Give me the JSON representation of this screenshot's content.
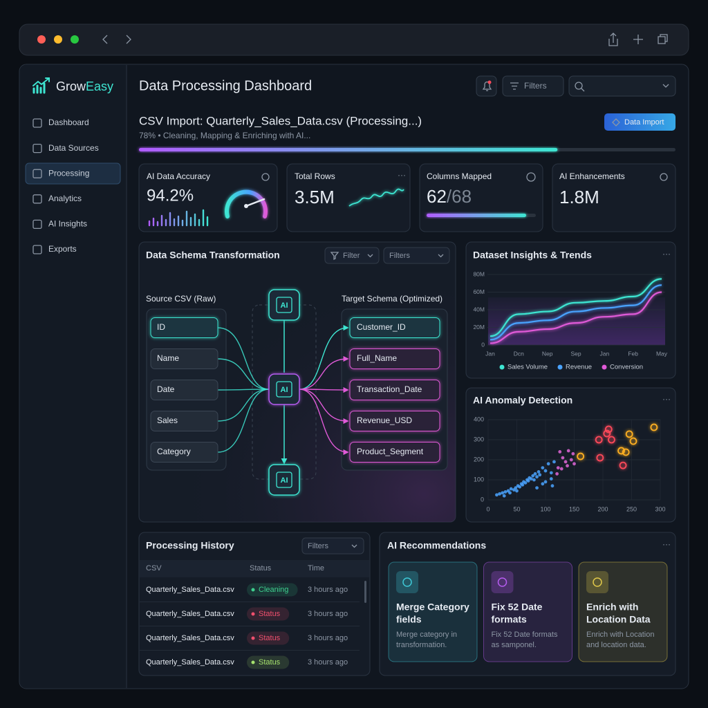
{
  "brand": [
    "Grow",
    "Easy"
  ],
  "nav": [
    "Dashboard",
    "Data Sources",
    "Processing",
    "Analytics",
    "AI Insights",
    "Exports"
  ],
  "header": {
    "title": "Data Processing Dashboard",
    "filters": "Filters"
  },
  "import": {
    "title": "CSV Import: Quarterly_Sales_Data.csv (Processing...)",
    "status": "78% • Cleaning, Mapping & Enriching with AI...",
    "progress": 78,
    "button": "Data Import"
  },
  "kpis": [
    {
      "label": "AI Data Accuracy",
      "value": "94.2%"
    },
    {
      "label": "Total Rows",
      "value": "3.5M"
    },
    {
      "label": "Columns Mapped",
      "value": "62",
      "total": "/68"
    },
    {
      "label": "AI Enhancements",
      "value": "1.8M"
    }
  ],
  "schema": {
    "title": "Data Schema Transformation",
    "filter": "Filter",
    "filters": "Filters",
    "source_title": "Source CSV (Raw)",
    "target_title": "Target Schema (Optimized)",
    "ai": "AI",
    "sources": [
      "ID",
      "Name",
      "Date",
      "Sales",
      "Category"
    ],
    "targets": [
      "Customer_ID",
      "Full_Name",
      "Transaction_Date",
      "Revenue_USD",
      "Product_Segment"
    ]
  },
  "chart_data": [
    {
      "type": "line",
      "title": "Dataset Insights & Trends",
      "categories": [
        "Jan",
        "Dcn",
        "Nep",
        "Sep",
        "Jan",
        "Feb",
        "May"
      ],
      "ylim": [
        0,
        80000000
      ],
      "yticks": [
        0,
        {
          "value": 20000000,
          "label": "20M"
        },
        {
          "value": 40000000,
          "label": "40M"
        },
        {
          "value": 60000000,
          "label": "60M"
        },
        {
          "value": 80000000,
          "label": "80M"
        }
      ],
      "grid": true,
      "series": [
        {
          "name": "Sales Volume",
          "color": "#3ee6d2",
          "values": [
            10000000,
            35000000,
            38000000,
            48000000,
            50000000,
            55000000,
            75000000
          ]
        },
        {
          "name": "Revenue",
          "color": "#4aa3ff",
          "values": [
            6000000,
            25000000,
            28000000,
            38000000,
            42000000,
            45000000,
            68000000
          ]
        },
        {
          "name": "Conversion",
          "color": "#e05ad8",
          "values": [
            2000000,
            15000000,
            18000000,
            25000000,
            32000000,
            35000000,
            60000000
          ]
        }
      ]
    },
    {
      "type": "scatter",
      "title": "AI Anomaly Detection",
      "xlim": [
        0,
        300
      ],
      "ylim": [
        0,
        400
      ],
      "xticks": [
        0,
        50,
        100,
        150,
        200,
        250,
        300
      ],
      "yticks": [
        0,
        100,
        200,
        300,
        400
      ],
      "grid": true,
      "series": [
        {
          "color": "#4aa3ff",
          "marker": "dot",
          "x": [
            15,
            20,
            25,
            28,
            30,
            35,
            38,
            40,
            45,
            48,
            50,
            52,
            55,
            58,
            60,
            62,
            65,
            68,
            70,
            72,
            75,
            78,
            80,
            82,
            85,
            88,
            90,
            95,
            100,
            105,
            110,
            115,
            110,
            100,
            95,
            112,
            85
          ],
          "y": [
            25,
            30,
            35,
            20,
            40,
            45,
            35,
            55,
            50,
            60,
            45,
            70,
            65,
            80,
            75,
            90,
            85,
            100,
            95,
            110,
            105,
            120,
            100,
            130,
            115,
            140,
            125,
            160,
            145,
            180,
            135,
            190,
            105,
            90,
            80,
            70,
            60
          ]
        },
        {
          "color": "#e066d8",
          "marker": "dot",
          "x": [
            120,
            122,
            128,
            130,
            135,
            138,
            140,
            145,
            148,
            150,
            125
          ],
          "y": [
            130,
            160,
            155,
            210,
            190,
            170,
            245,
            200,
            230,
            180,
            240
          ]
        },
        {
          "color": "#ff4a5a",
          "marker": "ring",
          "x": [
            193,
            207,
            210,
            215,
            195,
            235
          ],
          "y": [
            300,
            331,
            352,
            300,
            210,
            172
          ]
        },
        {
          "color": "#ffb020",
          "marker": "ring",
          "x": [
            161,
            246,
            253,
            232,
            240,
            289
          ],
          "y": [
            217,
            328,
            293,
            245,
            238,
            362
          ]
        }
      ]
    }
  ],
  "history": {
    "title": "Processing History",
    "filters": "Filters",
    "columns": [
      "CSV",
      "Status",
      "Time"
    ],
    "rows": [
      {
        "file": "Quarterly_Sales_Data.csv",
        "status": "Cleaning",
        "time": "3 hours ago",
        "color": "#3ecf8e"
      },
      {
        "file": "Quarterly_Sales_Data.csv",
        "status": "Status",
        "time": "3 hours ago",
        "color": "#f0506e"
      },
      {
        "file": "Quarterly_Sales_Data.csv",
        "status": "Status",
        "time": "3 hours ago",
        "color": "#f0506e"
      },
      {
        "file": "Quarterly_Sales_Data.csv",
        "status": "Status",
        "time": "3 hours ago",
        "color": "#a6e36e"
      }
    ]
  },
  "recommendations": {
    "title": "AI Recommendations",
    "cards": [
      {
        "title": [
          "Merge Category",
          "fields"
        ],
        "text": [
          "Merge category in",
          "transformation."
        ],
        "color": "#3ec8d6"
      },
      {
        "title": [
          "Fix 52 Date",
          "formats"
        ],
        "text": [
          "Fix 52 Date formats",
          "as samponel."
        ],
        "color": "#b65cf0"
      },
      {
        "title": [
          "Enrich with",
          "Location Data"
        ],
        "text": [
          "Enrich with Location",
          "and location data."
        ],
        "color": "#e0c84a"
      }
    ]
  }
}
